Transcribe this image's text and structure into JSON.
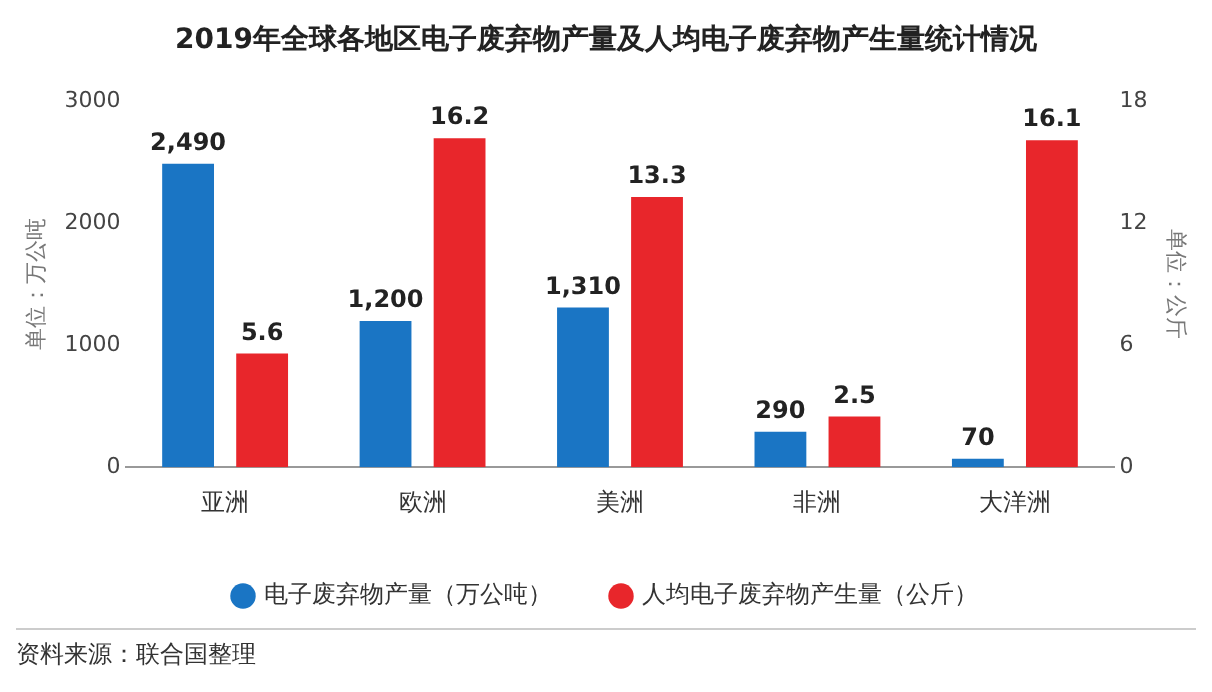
{
  "chart_data": {
    "type": "bar",
    "title": "2019年全球各地区电子废弃物产量及人均电子废弃物产生量统计情况",
    "categories": [
      "亚洲",
      "欧洲",
      "美洲",
      "非洲",
      "大洋洲"
    ],
    "series": [
      {
        "name": "电子废弃物产量（万公吨）",
        "color": "#1a75c4",
        "values": [
          2490,
          1200,
          1310,
          290,
          70
        ],
        "value_labels": [
          "2,490",
          "1,200",
          "1,310",
          "290",
          "70"
        ]
      },
      {
        "name": "人均电子废弃物产生量（公斤）",
        "color": "#e8262b",
        "values": [
          5.6,
          16.2,
          13.3,
          2.5,
          16.1
        ],
        "axis": "y2",
        "value_labels": [
          "5.6",
          "16.2",
          "13.3",
          "2.5",
          "16.1"
        ]
      }
    ],
    "ylabel": "单位：万公吨",
    "y2label": "单位：公斤",
    "ylim": [
      0,
      3000
    ],
    "yticks": [
      0,
      1000,
      2000,
      3000
    ],
    "y2lim": [
      0,
      18
    ],
    "y2ticks": [
      0,
      6,
      12,
      18
    ],
    "grid": false,
    "legend": "bottom",
    "annotations": [
      "资料来源：联合国整理"
    ]
  }
}
